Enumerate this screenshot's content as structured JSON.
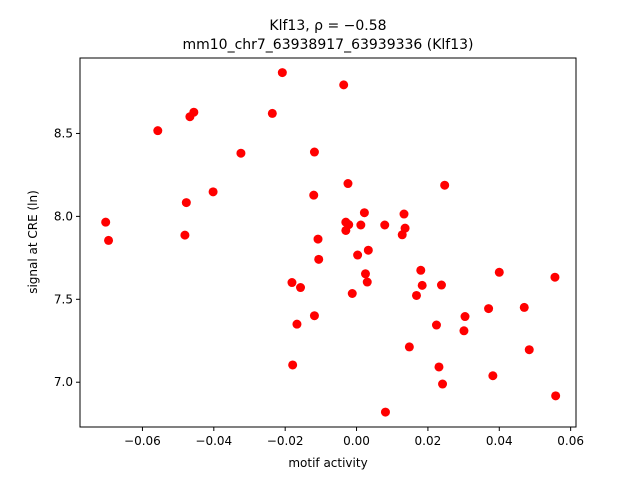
{
  "chart_data": {
    "type": "scatter",
    "title_line1": "Klf13, ρ = −0.58",
    "title_line2": "mm10_chr7_63938917_63939336 (Klf13)",
    "xlabel": "motif activity",
    "ylabel": "signal at CRE (ln)",
    "xlim": [
      -0.0775,
      0.0615
    ],
    "ylim": [
      6.73,
      8.955
    ],
    "grid": false,
    "xticks": [
      -0.06,
      -0.04,
      -0.02,
      0.0,
      0.02,
      0.04,
      0.06
    ],
    "xtick_labels": [
      "−0.06",
      "−0.04",
      "−0.02",
      "0.00",
      "0.02",
      "0.04",
      "0.06"
    ],
    "yticks": [
      7.0,
      7.5,
      8.0,
      8.5
    ],
    "ytick_labels": [
      "7.0",
      "7.5",
      "8.0",
      "8.5"
    ],
    "marker_color": "#ff0000",
    "points": [
      {
        "x": -0.0703,
        "y": 7.965
      },
      {
        "x": -0.0695,
        "y": 7.855
      },
      {
        "x": -0.0557,
        "y": 8.517
      },
      {
        "x": -0.0481,
        "y": 7.887
      },
      {
        "x": -0.0477,
        "y": 8.083
      },
      {
        "x": -0.0467,
        "y": 8.601
      },
      {
        "x": -0.0456,
        "y": 8.628
      },
      {
        "x": -0.0402,
        "y": 8.148
      },
      {
        "x": -0.0324,
        "y": 8.381
      },
      {
        "x": -0.0236,
        "y": 8.621
      },
      {
        "x": -0.0208,
        "y": 8.867
      },
      {
        "x": -0.0181,
        "y": 7.601
      },
      {
        "x": -0.0179,
        "y": 7.104
      },
      {
        "x": -0.0167,
        "y": 7.35
      },
      {
        "x": -0.0157,
        "y": 7.571
      },
      {
        "x": -0.012,
        "y": 8.128
      },
      {
        "x": -0.0118,
        "y": 8.388
      },
      {
        "x": -0.0118,
        "y": 7.401
      },
      {
        "x": -0.0108,
        "y": 7.863
      },
      {
        "x": -0.0106,
        "y": 7.741
      },
      {
        "x": -0.0036,
        "y": 8.793
      },
      {
        "x": -0.003,
        "y": 7.965
      },
      {
        "x": -0.003,
        "y": 7.915
      },
      {
        "x": -0.0024,
        "y": 8.198
      },
      {
        "x": -0.0022,
        "y": 7.95
      },
      {
        "x": -0.0012,
        "y": 7.535
      },
      {
        "x": 0.0003,
        "y": 7.767
      },
      {
        "x": 0.0012,
        "y": 7.948
      },
      {
        "x": 0.0022,
        "y": 8.022
      },
      {
        "x": 0.0025,
        "y": 7.654
      },
      {
        "x": 0.003,
        "y": 7.604
      },
      {
        "x": 0.0033,
        "y": 7.796
      },
      {
        "x": 0.0079,
        "y": 7.948
      },
      {
        "x": 0.0081,
        "y": 6.82
      },
      {
        "x": 0.0128,
        "y": 7.889
      },
      {
        "x": 0.0133,
        "y": 8.014
      },
      {
        "x": 0.0136,
        "y": 7.929
      },
      {
        "x": 0.0148,
        "y": 7.213
      },
      {
        "x": 0.0168,
        "y": 7.523
      },
      {
        "x": 0.018,
        "y": 7.675
      },
      {
        "x": 0.0184,
        "y": 7.584
      },
      {
        "x": 0.0224,
        "y": 7.345
      },
      {
        "x": 0.0231,
        "y": 7.092
      },
      {
        "x": 0.0238,
        "y": 7.586
      },
      {
        "x": 0.0241,
        "y": 6.989
      },
      {
        "x": 0.0247,
        "y": 8.188
      },
      {
        "x": 0.0301,
        "y": 7.31
      },
      {
        "x": 0.0304,
        "y": 7.396
      },
      {
        "x": 0.037,
        "y": 7.444
      },
      {
        "x": 0.0382,
        "y": 7.039
      },
      {
        "x": 0.04,
        "y": 7.663
      },
      {
        "x": 0.047,
        "y": 7.451
      },
      {
        "x": 0.0484,
        "y": 7.196
      },
      {
        "x": 0.0556,
        "y": 7.633
      },
      {
        "x": 0.0558,
        "y": 6.918
      }
    ]
  }
}
